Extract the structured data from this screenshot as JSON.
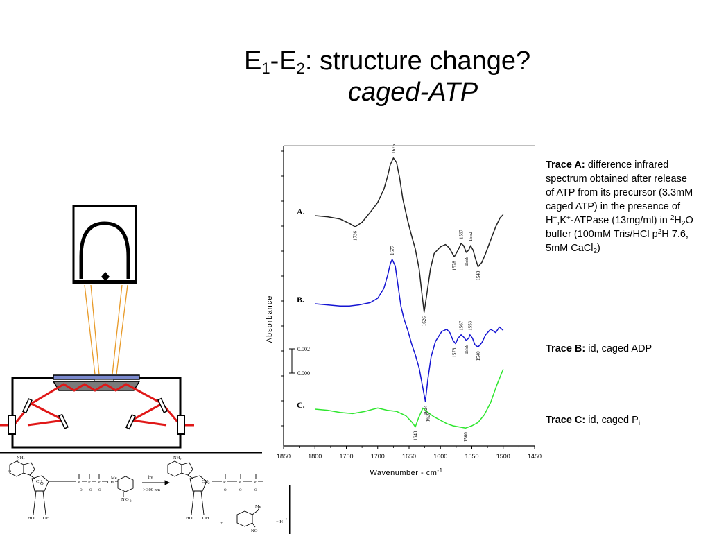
{
  "title": {
    "line1_prefix": "E",
    "line1_sub1": "1",
    "line1_mid": "-E",
    "line1_sub2": "2",
    "line1_suffix": ": structure change?",
    "line2": "caged-ATP"
  },
  "legend": {
    "trace_a": {
      "label": "Trace A:",
      "t1": " difference infrared spectrum obtained after release of ATP from its precursor (3.3mM caged ATP) in the presence of H",
      "sup1": "+",
      "t2": ",K",
      "sup2": "+",
      "t3": "-ATPase (13mg/ml) in ",
      "sup3": "2",
      "t4": "H",
      "sub1": "2",
      "t5": "O buffer (100mM Tris/HCl p",
      "sup4": "2",
      "t6": "H 7.6, 5mM CaCl",
      "sub2": "2",
      "t7": ")"
    },
    "trace_b": {
      "label": "Trace B:",
      "text": " id, caged ADP"
    },
    "trace_c": {
      "label": "Trace C:",
      "text": " id, caged P",
      "sub": "i"
    }
  },
  "chart_data": {
    "type": "line",
    "xlabel": "Wavenumber - cm",
    "xlabel_sup": "-1",
    "ylabel": "Absorbance",
    "xlim": [
      1850,
      1450
    ],
    "x_reversed": true,
    "x_ticks": [
      1850,
      1800,
      1750,
      1700,
      1650,
      1600,
      1550,
      1500,
      1450
    ],
    "scale_bar": {
      "top_label": "0.002",
      "bottom_label": "0.000"
    },
    "series": [
      {
        "name": "A.",
        "color": "#222222",
        "baseline": 0.0,
        "x": [
          1800,
          1780,
          1760,
          1745,
          1736,
          1725,
          1712,
          1700,
          1690,
          1684,
          1680,
          1675,
          1670,
          1665,
          1660,
          1652,
          1646,
          1640,
          1634,
          1630,
          1626,
          1622,
          1616,
          1610,
          1600,
          1592,
          1586,
          1578,
          1572,
          1567,
          1563,
          1559,
          1555,
          1552,
          1548,
          1544,
          1540,
          1534,
          1528,
          1520,
          1512,
          1505,
          1500
        ],
        "y": [
          0.0,
          -0.0001,
          -0.0003,
          -0.0007,
          -0.001,
          -0.0006,
          0.0003,
          0.0012,
          0.0024,
          0.0036,
          0.0046,
          0.0052,
          0.0048,
          0.0034,
          0.0015,
          -0.0005,
          -0.0018,
          -0.003,
          -0.0048,
          -0.0068,
          -0.0087,
          -0.0072,
          -0.0048,
          -0.0034,
          -0.0028,
          -0.0026,
          -0.0029,
          -0.0037,
          -0.0031,
          -0.0025,
          -0.0027,
          -0.0033,
          -0.0031,
          -0.0027,
          -0.0031,
          -0.0039,
          -0.0046,
          -0.0042,
          -0.0034,
          -0.0022,
          -0.001,
          -0.0002,
          0.0001
        ]
      },
      {
        "name": "B.",
        "color": "#1414d2",
        "baseline": 0.0,
        "x": [
          1800,
          1780,
          1760,
          1745,
          1730,
          1712,
          1700,
          1690,
          1684,
          1680,
          1677,
          1672,
          1668,
          1663,
          1658,
          1652,
          1646,
          1640,
          1634,
          1628,
          1624,
          1620,
          1615,
          1608,
          1598,
          1590,
          1585,
          1580,
          1576,
          1572,
          1567,
          1563,
          1559,
          1555,
          1553,
          1549,
          1545,
          1540,
          1534,
          1528,
          1520,
          1512,
          1506,
          1500
        ],
        "y": [
          0.0,
          -0.0001,
          -0.0002,
          -0.0002,
          -0.0001,
          0.0001,
          0.0005,
          0.0014,
          0.0026,
          0.0036,
          0.004,
          0.0034,
          0.0018,
          -0.0002,
          -0.0014,
          -0.0024,
          -0.0036,
          -0.0046,
          -0.0058,
          -0.0076,
          -0.0088,
          -0.0068,
          -0.0048,
          -0.0034,
          -0.0025,
          -0.0023,
          -0.0026,
          -0.0033,
          -0.0036,
          -0.0031,
          -0.0028,
          -0.003,
          -0.0033,
          -0.0031,
          -0.0028,
          -0.0031,
          -0.0037,
          -0.0039,
          -0.0035,
          -0.0028,
          -0.0023,
          -0.0026,
          -0.0021,
          -0.0024
        ]
      },
      {
        "name": "C.",
        "color": "#2ee62e",
        "baseline": 0.0,
        "x": [
          1800,
          1780,
          1760,
          1740,
          1720,
          1700,
          1685,
          1670,
          1655,
          1645,
          1640,
          1635,
          1628,
          1620,
          1610,
          1600,
          1590,
          1580,
          1570,
          1560,
          1550,
          1540,
          1530,
          1520,
          1510,
          1500
        ],
        "y": [
          0.0,
          -0.0001,
          -0.0003,
          -0.0004,
          -0.0002,
          0.0001,
          -0.0001,
          -0.0002,
          -0.0006,
          -0.0012,
          -0.0016,
          -0.0008,
          0.0001,
          -0.0003,
          -0.0007,
          -0.001,
          -0.0013,
          -0.0015,
          -0.0016,
          -0.0017,
          -0.0015,
          -0.0012,
          -0.0005,
          0.0006,
          0.0022,
          0.0036
        ]
      }
    ],
    "annotations": [
      {
        "trace": "A.",
        "label": "1675",
        "x": 1675,
        "y": 0.0052
      },
      {
        "trace": "A.",
        "label": "1736",
        "x": 1736,
        "y": -0.001
      },
      {
        "trace": "A.",
        "label": "1626",
        "x": 1626,
        "y": -0.0087
      },
      {
        "trace": "A.",
        "label": "1578",
        "x": 1578,
        "y": -0.0037
      },
      {
        "trace": "A.",
        "label": "1567",
        "x": 1567,
        "y": -0.0025
      },
      {
        "trace": "A.",
        "label": "1559",
        "x": 1559,
        "y": -0.0033
      },
      {
        "trace": "A.",
        "label": "1552",
        "x": 1552,
        "y": -0.0027
      },
      {
        "trace": "A.",
        "label": "1540",
        "x": 1540,
        "y": -0.0046
      },
      {
        "trace": "B.",
        "label": "1677",
        "x": 1677,
        "y": 0.004
      },
      {
        "trace": "B.",
        "label": "1624",
        "x": 1624,
        "y": -0.0088
      },
      {
        "trace": "B.",
        "label": "1578",
        "x": 1578,
        "y": -0.0036
      },
      {
        "trace": "B.",
        "label": "1567",
        "x": 1567,
        "y": -0.0028
      },
      {
        "trace": "B.",
        "label": "1559",
        "x": 1559,
        "y": -0.0033
      },
      {
        "trace": "B.",
        "label": "1553",
        "x": 1553,
        "y": -0.0028
      },
      {
        "trace": "B.",
        "label": "1540",
        "x": 1540,
        "y": -0.0039
      },
      {
        "trace": "C.",
        "label": "1640",
        "x": 1640,
        "y": -0.0016
      },
      {
        "trace": "C.",
        "label": "1620",
        "x": 1620,
        "y": 0.0001
      },
      {
        "trace": "C.",
        "label": "1560",
        "x": 1560,
        "y": -0.0017
      }
    ]
  },
  "scheme": {
    "left_nh2": "NH",
    "left_nh2_sub": "2",
    "right_nh2": "NH",
    "right_nh2_sub": "2",
    "left_ch2": "CH",
    "left_ch2_sub": "2",
    "right_ch2": "CH",
    "right_ch2_sub": "2",
    "phosphate": "P",
    "o_minus": "O-",
    "oxygen": "O",
    "me": "Me",
    "me2": "Me",
    "ch": "CH",
    "no2": "O",
    "no2_sub": "2",
    "no2_n": "N",
    "ho": "HO",
    "oh": "OH",
    "arrow_top": "hv",
    "arrow_bottom": "> 300 nm",
    "plus": "+",
    "h_plus": "+ H",
    "h_plus_sup": "+",
    "no": "NO",
    "n_letter": "N"
  }
}
